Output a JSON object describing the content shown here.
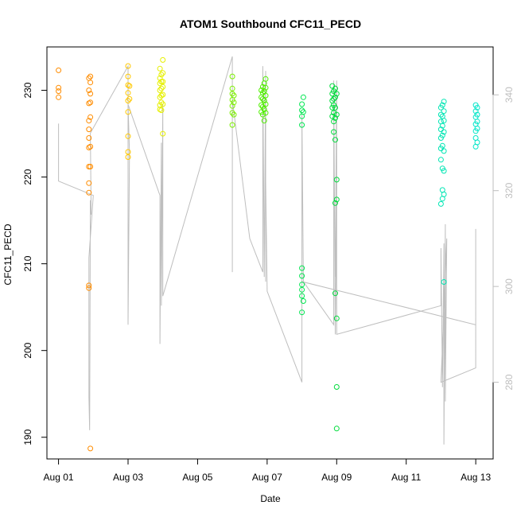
{
  "chart_data": {
    "type": "scatter",
    "title": "ATOM1 Southbound CFC11_PECD",
    "xlabel": "Date",
    "ylabel": "CFC11_PECD",
    "xlim": [
      "2016-07-31T16:00",
      "2016-08-13T12:00"
    ],
    "ylim": [
      187.5,
      235.0
    ],
    "y2lim": [
      264,
      350
    ],
    "x_ticks": [
      {
        "value": "2016-08-01",
        "label": "Aug 01"
      },
      {
        "value": "2016-08-03",
        "label": "Aug 03"
      },
      {
        "value": "2016-08-05",
        "label": "Aug 05"
      },
      {
        "value": "2016-08-07",
        "label": "Aug 07"
      },
      {
        "value": "2016-08-09",
        "label": "Aug 09"
      },
      {
        "value": "2016-08-11",
        "label": "Aug 11"
      },
      {
        "value": "2016-08-13",
        "label": "Aug 13"
      }
    ],
    "y_ticks": [
      190,
      200,
      210,
      220,
      230
    ],
    "y2_ticks": [
      280,
      300,
      320,
      340
    ],
    "grid": false,
    "series": [
      {
        "style": "points",
        "axis": "left",
        "color": "#FF8C00",
        "points": [
          [
            "2016-08-01T00:00",
            232.3
          ],
          [
            "2016-08-01T00:00",
            230.3
          ],
          [
            "2016-08-01T00:00",
            229.9
          ],
          [
            "2016-08-01T00:00",
            229.2
          ],
          [
            "2016-08-01T21:00",
            231.4
          ],
          [
            "2016-08-01T21:00",
            230.0
          ],
          [
            "2016-08-01T21:00",
            228.5
          ],
          [
            "2016-08-01T21:00",
            226.5
          ],
          [
            "2016-08-01T21:00",
            225.5
          ],
          [
            "2016-08-01T21:00",
            224.5
          ],
          [
            "2016-08-01T21:00",
            223.4
          ],
          [
            "2016-08-01T21:00",
            221.2
          ],
          [
            "2016-08-01T21:00",
            219.3
          ],
          [
            "2016-08-01T21:00",
            218.2
          ],
          [
            "2016-08-01T21:00",
            207.5
          ],
          [
            "2016-08-01T21:00",
            207.2
          ],
          [
            "2016-08-01T22:00",
            231.6
          ],
          [
            "2016-08-01T22:00",
            230.9
          ],
          [
            "2016-08-01T22:00",
            229.6
          ],
          [
            "2016-08-01T22:00",
            228.6
          ],
          [
            "2016-08-01T22:00",
            226.9
          ],
          [
            "2016-08-01T22:00",
            223.5
          ],
          [
            "2016-08-01T22:00",
            221.2
          ],
          [
            "2016-08-01T22:00",
            188.7
          ]
        ]
      },
      {
        "style": "points",
        "axis": "left",
        "color": "#FFC800",
        "points": [
          [
            "2016-08-03T00:00",
            232.8
          ],
          [
            "2016-08-03T00:00",
            231.6
          ],
          [
            "2016-08-03T00:00",
            230.6
          ],
          [
            "2016-08-03T00:00",
            229.7
          ],
          [
            "2016-08-03T00:00",
            228.8
          ],
          [
            "2016-08-03T00:00",
            227.5
          ],
          [
            "2016-08-03T00:00",
            224.7
          ],
          [
            "2016-08-03T00:00",
            222.9
          ],
          [
            "2016-08-03T00:00",
            222.3
          ],
          [
            "2016-08-03T01:00",
            230.5
          ],
          [
            "2016-08-03T01:00",
            229.0
          ]
        ]
      },
      {
        "style": "points",
        "axis": "left",
        "color": "#E6F000",
        "points": [
          [
            "2016-08-03T22:00",
            232.5
          ],
          [
            "2016-08-03T22:00",
            231.4
          ],
          [
            "2016-08-03T22:00",
            230.8
          ],
          [
            "2016-08-03T22:00",
            230.0
          ],
          [
            "2016-08-03T22:00",
            229.2
          ],
          [
            "2016-08-03T22:00",
            228.3
          ],
          [
            "2016-08-03T22:00",
            227.8
          ],
          [
            "2016-08-03T23:00",
            231.8
          ],
          [
            "2016-08-03T23:00",
            231.0
          ],
          [
            "2016-08-03T23:00",
            230.2
          ],
          [
            "2016-08-03T23:00",
            229.4
          ],
          [
            "2016-08-03T23:00",
            228.6
          ],
          [
            "2016-08-03T23:00",
            227.7
          ],
          [
            "2016-08-04T00:00",
            233.5
          ],
          [
            "2016-08-04T00:00",
            232.0
          ],
          [
            "2016-08-04T00:00",
            231.0
          ],
          [
            "2016-08-04T00:00",
            230.4
          ],
          [
            "2016-08-04T00:00",
            229.5
          ],
          [
            "2016-08-04T00:00",
            228.4
          ],
          [
            "2016-08-04T00:00",
            225.0
          ]
        ]
      },
      {
        "style": "points",
        "axis": "left",
        "color": "#7CF000",
        "points": [
          [
            "2016-08-06T00:00",
            231.6
          ],
          [
            "2016-08-06T00:00",
            230.2
          ],
          [
            "2016-08-06T00:00",
            229.6
          ],
          [
            "2016-08-06T00:00",
            228.9
          ],
          [
            "2016-08-06T00:00",
            228.2
          ],
          [
            "2016-08-06T00:00",
            227.4
          ],
          [
            "2016-08-06T00:00",
            226.0
          ],
          [
            "2016-08-06T01:00",
            229.4
          ],
          [
            "2016-08-06T01:00",
            228.6
          ],
          [
            "2016-08-06T01:00",
            227.2
          ]
        ]
      },
      {
        "style": "points",
        "axis": "left",
        "color": "#50F000",
        "points": [
          [
            "2016-08-06T20:00",
            230.0
          ],
          [
            "2016-08-06T20:00",
            229.2
          ],
          [
            "2016-08-06T20:00",
            228.3
          ],
          [
            "2016-08-06T20:00",
            227.5
          ],
          [
            "2016-08-06T21:00",
            230.4
          ],
          [
            "2016-08-06T21:00",
            229.7
          ],
          [
            "2016-08-06T21:00",
            229.0
          ],
          [
            "2016-08-06T21:00",
            228.1
          ],
          [
            "2016-08-06T21:00",
            227.2
          ],
          [
            "2016-08-06T22:00",
            230.8
          ],
          [
            "2016-08-06T22:00",
            229.9
          ],
          [
            "2016-08-06T22:00",
            228.8
          ],
          [
            "2016-08-06T22:00",
            227.8
          ],
          [
            "2016-08-06T22:00",
            226.5
          ],
          [
            "2016-08-06T23:00",
            231.3
          ],
          [
            "2016-08-06T23:00",
            230.3
          ],
          [
            "2016-08-06T23:00",
            229.4
          ],
          [
            "2016-08-06T23:00",
            228.4
          ],
          [
            "2016-08-06T23:00",
            227.4
          ]
        ]
      },
      {
        "style": "points",
        "axis": "left",
        "color": "#00E650",
        "points": [
          [
            "2016-08-08T00:00",
            228.4
          ],
          [
            "2016-08-08T00:00",
            227.7
          ],
          [
            "2016-08-08T00:00",
            227.0
          ],
          [
            "2016-08-08T00:00",
            226.0
          ],
          [
            "2016-08-08T00:00",
            209.5
          ],
          [
            "2016-08-08T00:00",
            208.6
          ],
          [
            "2016-08-08T00:00",
            207.6
          ],
          [
            "2016-08-08T00:00",
            207.0
          ],
          [
            "2016-08-08T00:00",
            206.3
          ],
          [
            "2016-08-08T00:00",
            204.4
          ],
          [
            "2016-08-08T01:00",
            229.2
          ],
          [
            "2016-08-08T01:00",
            227.5
          ],
          [
            "2016-08-08T01:00",
            205.7
          ]
        ]
      },
      {
        "style": "points",
        "axis": "left",
        "color": "#00DC3C",
        "points": [
          [
            "2016-08-08T21:00",
            230.5
          ],
          [
            "2016-08-08T21:00",
            229.6
          ],
          [
            "2016-08-08T21:00",
            228.8
          ],
          [
            "2016-08-08T21:00",
            228.0
          ],
          [
            "2016-08-08T21:00",
            227.0
          ],
          [
            "2016-08-08T22:00",
            229.9
          ],
          [
            "2016-08-08T22:00",
            229.0
          ],
          [
            "2016-08-08T22:00",
            228.3
          ],
          [
            "2016-08-08T22:00",
            227.4
          ],
          [
            "2016-08-08T22:00",
            226.4
          ],
          [
            "2016-08-08T22:00",
            225.2
          ],
          [
            "2016-08-08T23:00",
            230.2
          ],
          [
            "2016-08-08T23:00",
            229.2
          ],
          [
            "2016-08-08T23:00",
            228.0
          ],
          [
            "2016-08-08T23:00",
            226.8
          ],
          [
            "2016-08-08T23:00",
            224.3
          ],
          [
            "2016-08-08T23:00",
            217.0
          ],
          [
            "2016-08-08T23:00",
            206.6
          ],
          [
            "2016-08-09T00:00",
            229.6
          ],
          [
            "2016-08-09T00:00",
            227.2
          ],
          [
            "2016-08-09T00:00",
            219.7
          ],
          [
            "2016-08-09T00:00",
            217.4
          ],
          [
            "2016-08-09T00:00",
            203.7
          ],
          [
            "2016-08-09T00:00",
            195.8
          ],
          [
            "2016-08-09T00:00",
            191.0
          ]
        ]
      },
      {
        "style": "points",
        "axis": "left",
        "color": "#00E6B4",
        "points": [
          [
            "2016-08-12T00:00",
            228.0
          ],
          [
            "2016-08-12T00:00",
            227.2
          ],
          [
            "2016-08-12T00:00",
            226.4
          ],
          [
            "2016-08-12T00:00",
            225.5
          ],
          [
            "2016-08-12T00:00",
            224.5
          ],
          [
            "2016-08-12T00:00",
            223.3
          ],
          [
            "2016-08-12T00:00",
            222.0
          ],
          [
            "2016-08-12T00:00",
            216.9
          ],
          [
            "2016-08-12T01:00",
            228.3
          ],
          [
            "2016-08-12T01:00",
            227.0
          ],
          [
            "2016-08-12T01:00",
            225.9
          ],
          [
            "2016-08-12T01:00",
            224.8
          ],
          [
            "2016-08-12T01:00",
            223.6
          ],
          [
            "2016-08-12T01:00",
            221.0
          ],
          [
            "2016-08-12T01:00",
            218.5
          ],
          [
            "2016-08-12T01:00",
            217.5
          ],
          [
            "2016-08-12T02:00",
            228.7
          ],
          [
            "2016-08-12T02:00",
            227.6
          ],
          [
            "2016-08-12T02:00",
            226.5
          ],
          [
            "2016-08-12T02:00",
            225.2
          ],
          [
            "2016-08-12T02:00",
            223.0
          ],
          [
            "2016-08-12T02:00",
            220.7
          ],
          [
            "2016-08-12T02:00",
            218.0
          ],
          [
            "2016-08-12T02:00",
            207.9
          ]
        ]
      },
      {
        "style": "points",
        "axis": "left",
        "color": "#00E6C8",
        "points": [
          [
            "2016-08-13T00:00",
            228.3
          ],
          [
            "2016-08-13T00:00",
            227.6
          ],
          [
            "2016-08-13T00:00",
            226.9
          ],
          [
            "2016-08-13T00:00",
            226.1
          ],
          [
            "2016-08-13T00:00",
            225.3
          ],
          [
            "2016-08-13T00:00",
            224.5
          ],
          [
            "2016-08-13T00:00",
            223.5
          ],
          [
            "2016-08-13T01:00",
            228.0
          ],
          [
            "2016-08-13T01:00",
            227.2
          ],
          [
            "2016-08-13T01:00",
            226.4
          ],
          [
            "2016-08-13T01:00",
            225.6
          ],
          [
            "2016-08-13T01:00",
            224.0
          ]
        ]
      },
      {
        "style": "line",
        "axis": "right",
        "color": "#bebebe",
        "points": [
          [
            "2016-08-01T00:00",
            334.0
          ],
          [
            "2016-08-01T00:00",
            322.0
          ],
          [
            "2016-08-02T00:00",
            319.0
          ],
          [
            "2016-08-01T21:00",
            306.0
          ],
          [
            "2016-08-01T21:00",
            277.0
          ],
          [
            "2016-08-01T21:30",
            270.0
          ],
          [
            "2016-08-01T22:00",
            318.0
          ],
          [
            "2016-08-01T22:30",
            315.0
          ],
          [
            "2016-08-01T22:00",
            332.0
          ],
          [
            "2016-08-03T00:00",
            346.0
          ],
          [
            "2016-08-03T00:00",
            292.0
          ],
          [
            "2016-08-03T01:00",
            328.0
          ],
          [
            "2016-08-03T00:00",
            338.0
          ],
          [
            "2016-08-03T22:00",
            319.0
          ],
          [
            "2016-08-03T22:00",
            312.0
          ],
          [
            "2016-08-03T22:00",
            288.0
          ],
          [
            "2016-08-03T23:00",
            330.0
          ],
          [
            "2016-08-03T23:00",
            296.0
          ],
          [
            "2016-08-04T00:00",
            338.0
          ],
          [
            "2016-08-04T00:00",
            298.0
          ],
          [
            "2016-08-06T00:00",
            348.0
          ],
          [
            "2016-08-06T00:00",
            303.0
          ],
          [
            "2016-08-06T00:00",
            339.0
          ],
          [
            "2016-08-06T12:00",
            310.0
          ],
          [
            "2016-08-06T21:00",
            303.0
          ],
          [
            "2016-08-06T21:00",
            346.0
          ],
          [
            "2016-08-06T22:00",
            302.0
          ],
          [
            "2016-08-06T23:00",
            345.0
          ],
          [
            "2016-08-06T23:00",
            304.0
          ],
          [
            "2016-08-06T23:00",
            340.0
          ],
          [
            "2016-08-06T23:00",
            301.0
          ],
          [
            "2016-08-06T23:00",
            322.0
          ],
          [
            "2016-08-07T00:00",
            299.0
          ],
          [
            "2016-08-08T00:00",
            280.0
          ],
          [
            "2016-08-08T00:00",
            336.0
          ],
          [
            "2016-08-08T01:00",
            301.0
          ],
          [
            "2016-08-08T22:00",
            292.0
          ],
          [
            "2016-08-08T22:00",
            343.0
          ],
          [
            "2016-08-08T23:00",
            290.0
          ],
          [
            "2016-08-09T00:00",
            318.0
          ],
          [
            "2016-08-09T00:00",
            318.0
          ],
          [
            "2016-08-08T23:00",
            302.0
          ],
          [
            "2016-08-09T00:00",
            343.0
          ],
          [
            "2016-08-09T00:00",
            290.0
          ],
          [
            "2016-08-12T00:00",
            296.0
          ],
          [
            "2016-08-12T00:00",
            308.0
          ],
          [
            "2016-08-12T01:00",
            279.0
          ],
          [
            "2016-08-12T02:00",
            309.0
          ],
          [
            "2016-08-12T02:00",
            267.0
          ],
          [
            "2016-08-12T03:00",
            313.0
          ],
          [
            "2016-08-12T03:00",
            276.0
          ],
          [
            "2016-08-12T04:00",
            310.0
          ],
          [
            "2016-08-12T00:00",
            280.0
          ],
          [
            "2016-08-13T00:00",
            283.0
          ],
          [
            "2016-08-13T00:00",
            312.0
          ],
          [
            "2016-08-13T00:00",
            292.0
          ],
          [
            "2016-08-08T00:00",
            301.0
          ],
          [
            "2016-08-13T00:00",
            292.0
          ],
          [
            "2016-08-13T00:00",
            311.0
          ]
        ]
      }
    ]
  }
}
